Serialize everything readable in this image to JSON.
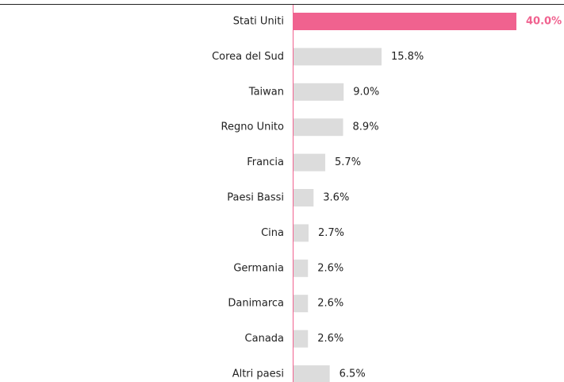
{
  "chart_data": {
    "type": "barh",
    "categories": [
      "Stati Uniti",
      "Corea del Sud",
      "Taiwan",
      "Regno Unito",
      "Francia",
      "Paesi Bassi",
      "Cina",
      "Germania",
      "Danimarca",
      "Canada",
      "Altri paesi"
    ],
    "values": [
      40.0,
      15.8,
      9.0,
      8.9,
      5.7,
      3.6,
      2.7,
      2.6,
      2.6,
      2.6,
      6.5
    ],
    "value_labels": [
      "40.0%",
      "15.8%",
      "9.0%",
      "8.9%",
      "5.7%",
      "3.6%",
      "2.7%",
      "2.6%",
      "2.6%",
      "2.6%",
      "6.5%"
    ],
    "colors": [
      "#f0628f",
      "#dcdcdc",
      "#dcdcdc",
      "#dcdcdc",
      "#dcdcdc",
      "#dcdcdc",
      "#dcdcdc",
      "#dcdcdc",
      "#dcdcdc",
      "#dcdcdc",
      "#dcdcdc"
    ]
  }
}
